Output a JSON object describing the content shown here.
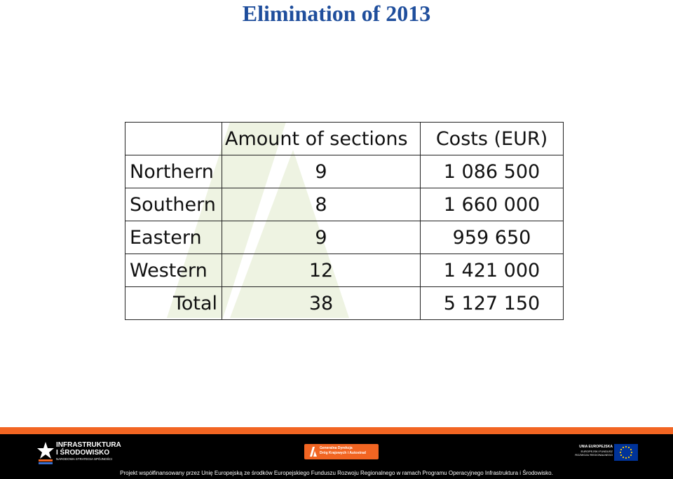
{
  "title": "Elimination of 2013",
  "table": {
    "headers": [
      "",
      "Amount of sections",
      "Costs (EUR)"
    ],
    "rows": [
      [
        "Northern",
        "9",
        "1 086 500"
      ],
      [
        "Southern",
        "8",
        "1 660 000"
      ],
      [
        "Eastern",
        "9",
        "959 650"
      ],
      [
        "Western",
        "12",
        "1 421 000"
      ]
    ],
    "total": [
      "Total",
      "38",
      "5 127 150"
    ]
  },
  "footer": {
    "logo_left": {
      "line1": "INFRASTRUKTURA",
      "line2": "I ŚRODOWISKO",
      "line3": "NARODOWA STRATEGIA SPÓJNOŚCI"
    },
    "logo_center": {
      "line1": "Generalna Dyrekcja",
      "line2": "Dróg Krajowych i Autostrad"
    },
    "logo_right": {
      "line1": "UNIA EUROPEJSKA",
      "line2": "EUROPEJSKI FUNDUSZ",
      "line3": "ROZWOJU REGIONALNEGO"
    },
    "note": "Projekt współfinansowany przez Unię Europejską ze środków Europejskiego Funduszu Rozwoju Regionalnego w ramach Programu Operacyjnego Infrastruktura i Środowisko."
  },
  "colors": {
    "title": "#1f4e9c",
    "footer_bar": "#000000",
    "footer_stripe": "#f26522",
    "gddkia_orange": "#f26522",
    "eu_blue": "#003399",
    "eu_star": "#ffcc00"
  },
  "icons": {
    "watermark": "gddkia-road-watermark",
    "left_logo": "star-icon",
    "center_logo": "gddkia-logo",
    "right_logo": "eu-flag-icon"
  }
}
